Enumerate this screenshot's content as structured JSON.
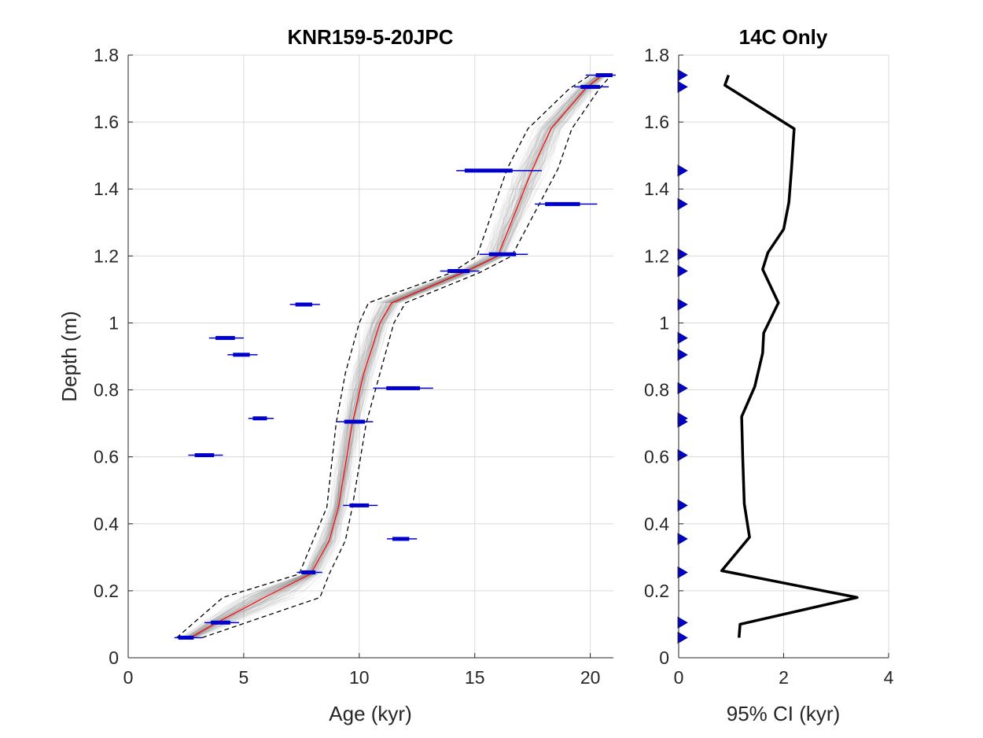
{
  "colors": {
    "median": "#ff0000",
    "ensemble": "#808080",
    "ci": "#000000",
    "dates": "#0000cd",
    "uncertainty": "#000000",
    "markers": "#0000cd",
    "grid": "#d9d9d9"
  },
  "chart_data": [
    {
      "type": "line",
      "title": "KNR159-5-20JPC",
      "xlabel": "Age (kyr)",
      "ylabel": "Depth (m)",
      "xlim": [
        0,
        21
      ],
      "ylim": [
        0,
        1.8
      ],
      "xticks": [
        "0",
        "5",
        "10",
        "15",
        "20"
      ],
      "yticks": [
        "0",
        "0.2",
        "0.4",
        "0.6",
        "0.8",
        "1",
        "1.2",
        "1.4",
        "1.6",
        "1.8"
      ],
      "grid": true,
      "median": {
        "depth": [
          0.06,
          0.1,
          0.18,
          0.25,
          0.35,
          0.45,
          0.7,
          0.85,
          1.0,
          1.06,
          1.15,
          1.2,
          1.46,
          1.58,
          1.7,
          1.74
        ],
        "age": [
          2.7,
          3.7,
          5.9,
          7.9,
          8.7,
          9.1,
          9.7,
          10.2,
          10.9,
          11.4,
          14.5,
          16.0,
          17.5,
          18.3,
          19.8,
          20.5
        ]
      },
      "ci_lower": {
        "depth": [
          0.06,
          0.18,
          0.25,
          0.35,
          0.45,
          0.7,
          0.85,
          1.0,
          1.06,
          1.15,
          1.2,
          1.46,
          1.58,
          1.7,
          1.74
        ],
        "age": [
          2.1,
          4.1,
          7.4,
          8.0,
          8.6,
          9.0,
          9.4,
          10.0,
          10.4,
          14.0,
          15.1,
          16.4,
          17.3,
          19.1,
          20.0
        ]
      },
      "ci_upper": {
        "depth": [
          0.06,
          0.18,
          0.25,
          0.35,
          0.45,
          0.7,
          0.85,
          1.0,
          1.06,
          1.15,
          1.2,
          1.46,
          1.58,
          1.7,
          1.74
        ],
        "age": [
          3.2,
          8.3,
          8.7,
          9.4,
          9.7,
          10.3,
          10.9,
          11.5,
          12.0,
          15.2,
          16.6,
          18.6,
          19.2,
          20.4,
          20.9
        ]
      },
      "dates": [
        {
          "depth": 0.06,
          "age": 2.5,
          "range": [
            2.0,
            3.2
          ]
        },
        {
          "depth": 0.105,
          "age": 4.0,
          "range": [
            3.3,
            4.8
          ]
        },
        {
          "depth": 0.255,
          "age": 7.8,
          "range": [
            7.3,
            8.4
          ]
        },
        {
          "depth": 0.355,
          "age": 11.8,
          "range": [
            11.2,
            12.5
          ]
        },
        {
          "depth": 0.455,
          "age": 10.0,
          "range": [
            9.3,
            10.8
          ]
        },
        {
          "depth": 0.605,
          "age": 3.3,
          "range": [
            2.6,
            4.1
          ]
        },
        {
          "depth": 0.705,
          "age": 9.8,
          "range": [
            9.0,
            10.6
          ]
        },
        {
          "depth": 0.715,
          "age": 5.7,
          "range": [
            5.2,
            6.3
          ]
        },
        {
          "depth": 0.805,
          "age": 11.9,
          "range": [
            10.6,
            13.2
          ]
        },
        {
          "depth": 0.905,
          "age": 4.9,
          "range": [
            4.3,
            5.6
          ]
        },
        {
          "depth": 0.955,
          "age": 4.2,
          "range": [
            3.5,
            5.0
          ]
        },
        {
          "depth": 1.055,
          "age": 7.6,
          "range": [
            7.0,
            8.3
          ]
        },
        {
          "depth": 1.155,
          "age": 14.3,
          "range": [
            13.5,
            15.2
          ]
        },
        {
          "depth": 1.205,
          "age": 16.2,
          "range": [
            15.2,
            17.3
          ]
        },
        {
          "depth": 1.355,
          "age": 18.8,
          "range": [
            17.6,
            20.3
          ]
        },
        {
          "depth": 1.455,
          "age": 15.6,
          "range": [
            14.2,
            17.9
          ]
        },
        {
          "depth": 1.705,
          "age": 20.0,
          "range": [
            19.3,
            20.8
          ]
        },
        {
          "depth": 1.74,
          "age": 20.6,
          "range": [
            19.8,
            21.1
          ]
        }
      ]
    },
    {
      "type": "line",
      "title": "14C Only",
      "xlabel": "95% CI (kyr)",
      "ylabel": "",
      "xlim": [
        0,
        4
      ],
      "ylim": [
        0,
        1.8
      ],
      "xticks": [
        "0",
        "2",
        "4"
      ],
      "yticks": [
        "0",
        "0.2",
        "0.4",
        "0.6",
        "0.8",
        "1",
        "1.2",
        "1.4",
        "1.6",
        "1.8"
      ],
      "grid": true,
      "series": [
        {
          "depth": [
            0.06,
            0.1,
            0.18,
            0.26,
            0.36,
            0.46,
            0.6,
            0.72,
            0.81,
            0.91,
            0.97,
            1.06,
            1.16,
            1.21,
            1.28,
            1.36,
            1.46,
            1.58,
            1.71,
            1.74
          ],
          "ci": [
            1.15,
            1.17,
            3.4,
            0.82,
            1.35,
            1.25,
            1.22,
            1.2,
            1.45,
            1.6,
            1.62,
            1.9,
            1.6,
            1.7,
            2.0,
            2.1,
            2.15,
            2.2,
            0.88,
            0.95
          ]
        }
      ],
      "date_markers": [
        0.06,
        0.105,
        0.255,
        0.355,
        0.455,
        0.605,
        0.705,
        0.715,
        0.805,
        0.905,
        0.955,
        1.055,
        1.155,
        1.205,
        1.355,
        1.455,
        1.705,
        1.74
      ]
    }
  ]
}
